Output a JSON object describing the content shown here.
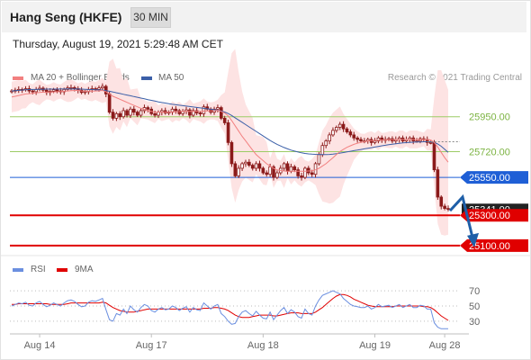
{
  "header": {
    "title": "Hang Seng (HKFE)",
    "timeframe": "30 MIN",
    "datetime": "Thursday, August 19, 2021 5:29:48 AM CET"
  },
  "legend": {
    "ma20_label": "MA 20 + Bollinger Bands",
    "ma50_label": "MA 50",
    "research": "Research © 2021 Trading Central",
    "rsi_label": "RSI",
    "ma9_label": "9MA"
  },
  "colors": {
    "ma20": "#f28080",
    "ma50": "#3b5fa8",
    "bollinger_fill": "#fde3e3",
    "candle": "#8b1a1a",
    "level_green": "#9ccc65",
    "level_blue": "#1f5fd6",
    "level_red": "#e00000",
    "rsi": "#6b8fe0",
    "rsi_ma": "#e00000",
    "arrow": "#1f5fa8"
  },
  "chart_data": [
    {
      "type": "candlestick",
      "title": "Hang Seng (HKFE)",
      "interval": "30 MIN",
      "ylim": [
        25040,
        26150
      ],
      "x_labels": [
        "Aug 14",
        "Aug 17",
        "Aug 18",
        "Aug 19",
        "Aug 28"
      ],
      "x_label_index": [
        8,
        40,
        72,
        104,
        124
      ],
      "levels": [
        {
          "value": 25950,
          "label": "25950.00",
          "kind": "resistance"
        },
        {
          "value": 25720,
          "label": "25720.00",
          "kind": "pivot"
        },
        {
          "value": 25550,
          "label": "25550.00",
          "kind": "current"
        },
        {
          "value": 25300,
          "label": "25300.00",
          "kind": "support"
        },
        {
          "value": 25100,
          "label": "25100.00",
          "kind": "support"
        }
      ],
      "last_price_tag": "25341.00",
      "candles_close": [
        26120,
        26125,
        26130,
        26128,
        26135,
        26120,
        26115,
        26130,
        26138,
        26125,
        26110,
        26118,
        26128,
        26120,
        26115,
        26130,
        26140,
        26142,
        26135,
        26125,
        26110,
        26115,
        26130,
        26135,
        26130,
        26140,
        26150,
        26100,
        25980,
        25940,
        25970,
        25950,
        25990,
        25960,
        26000,
        25980,
        25960,
        25990,
        26010,
        26000,
        25970,
        25960,
        25980,
        25990,
        25975,
        25980,
        26000,
        25990,
        25970,
        25985,
        25995,
        25960,
        25990,
        25975,
        25970,
        26015,
        26000,
        25980,
        26000,
        26010,
        25940,
        25910,
        25780,
        25640,
        25560,
        25610,
        25640,
        25650,
        25630,
        25610,
        25640,
        25610,
        25580,
        25570,
        25620,
        25550,
        25580,
        25610,
        25640,
        25590,
        25620,
        25600,
        25560,
        25550,
        25610,
        25580,
        25570,
        25640,
        25700,
        25760,
        25790,
        25830,
        25860,
        25880,
        25900,
        25870,
        25850,
        25830,
        25810,
        25800,
        25790,
        25790,
        25800,
        25780,
        25790,
        25810,
        25795,
        25800,
        25805,
        25790,
        25800,
        25810,
        25790,
        25800,
        25810,
        25790,
        25790,
        25805,
        25800,
        25780,
        25780,
        25600,
        25420,
        25360,
        25345,
        25341
      ],
      "ma20": [
        26080,
        26085,
        26090,
        26095,
        26100,
        26102,
        26105,
        26108,
        26110,
        26112,
        26112,
        26113,
        26114,
        26115,
        26116,
        26118,
        26120,
        26122,
        26123,
        26124,
        26120,
        26118,
        26118,
        26119,
        26120,
        26121,
        26123,
        26115,
        26100,
        26085,
        26075,
        26065,
        26055,
        26045,
        26035,
        26025,
        26015,
        26005,
        25998,
        25990,
        25985,
        25980,
        25980,
        25980,
        25980,
        25980,
        25982,
        25983,
        25984,
        25985,
        25986,
        25985,
        25986,
        25985,
        25985,
        25987,
        25988,
        25988,
        25990,
        25992,
        25985,
        25975,
        25955,
        25925,
        25890,
        25855,
        25820,
        25790,
        25760,
        25730,
        25700,
        25680,
        25660,
        25640,
        25625,
        25610,
        25600,
        25595,
        25592,
        25590,
        25590,
        25590,
        25590,
        25590,
        25590,
        25592,
        25593,
        25600,
        25610,
        25625,
        25640,
        25660,
        25680,
        25700,
        25720,
        25735,
        25748,
        25758,
        25768,
        25775,
        25780,
        25785,
        25790,
        25792,
        25793,
        25795,
        25796,
        25797,
        25798,
        25798,
        25799,
        25800,
        25800,
        25800,
        25800,
        25800,
        25800,
        25800,
        25800,
        25799,
        25797,
        25780,
        25750,
        25715,
        25680,
        25650
      ],
      "ma50": [
        26120,
        26122,
        26124,
        26126,
        26128,
        26129,
        26130,
        26130,
        26131,
        26131,
        26132,
        26132,
        26132,
        26132,
        26133,
        26133,
        26133,
        26133,
        26133,
        26133,
        26132,
        26131,
        26130,
        26129,
        26128,
        26127,
        26126,
        26122,
        26118,
        26113,
        26108,
        26103,
        26098,
        26093,
        26088,
        26083,
        26078,
        26073,
        26068,
        26063,
        26058,
        26053,
        26048,
        26044,
        26040,
        26036,
        26032,
        26029,
        26026,
        26023,
        26020,
        26017,
        26014,
        26011,
        26008,
        26005,
        26002,
        25999,
        25996,
        25993,
        25988,
        25981,
        25971,
        25958,
        25943,
        25928,
        25913,
        25898,
        25883,
        25868,
        25853,
        25838,
        25823,
        25808,
        25793,
        25780,
        25768,
        25757,
        25747,
        25738,
        25730,
        25723,
        25717,
        25712,
        25708,
        25705,
        25703,
        25702,
        25701,
        25700,
        25700,
        25701,
        25703,
        25706,
        25710,
        25714,
        25718,
        25722,
        25726,
        25730,
        25734,
        25738,
        25742,
        25746,
        25750,
        25754,
        25758,
        25762,
        25766,
        25769,
        25772,
        25775,
        25777,
        25779,
        25781,
        25782,
        25783,
        25784,
        25785,
        25785,
        25785,
        25780,
        25770,
        25755,
        25735,
        25715
      ]
    },
    {
      "type": "line",
      "title": "RSI",
      "ylim": [
        18,
        82
      ],
      "y_ticks": [
        70,
        50,
        30
      ],
      "series": [
        {
          "name": "RSI",
          "values": [
            50,
            52,
            54,
            53,
            55,
            51,
            50,
            54,
            56,
            52,
            49,
            51,
            54,
            52,
            50,
            54,
            57,
            58,
            56,
            52,
            49,
            50,
            55,
            57,
            56,
            58,
            60,
            45,
            32,
            30,
            40,
            38,
            46,
            40,
            50,
            45,
            42,
            48,
            52,
            50,
            44,
            42,
            46,
            48,
            45,
            46,
            50,
            48,
            44,
            47,
            49,
            42,
            48,
            45,
            44,
            54,
            50,
            46,
            50,
            52,
            40,
            36,
            30,
            26,
            27,
            36,
            42,
            44,
            40,
            37,
            43,
            38,
            34,
            33,
            42,
            32,
            38,
            44,
            48,
            40,
            45,
            42,
            36,
            34,
            46,
            40,
            38,
            50,
            58,
            64,
            66,
            68,
            70,
            68,
            66,
            60,
            56,
            52,
            50,
            49,
            48,
            48,
            50,
            46,
            48,
            52,
            49,
            50,
            51,
            48,
            50,
            52,
            48,
            50,
            52,
            48,
            48,
            51,
            50,
            46,
            46,
            28,
            22,
            20,
            20,
            20
          ]
        },
        {
          "name": "9MA",
          "values": [
            52,
            52,
            53,
            53,
            53,
            53,
            53,
            53,
            53,
            53,
            53,
            52,
            52,
            52,
            52,
            52,
            53,
            54,
            54,
            54,
            54,
            54,
            54,
            54,
            54,
            54,
            55,
            54,
            51,
            48,
            46,
            44,
            43,
            42,
            42,
            42,
            43,
            44,
            45,
            46,
            46,
            46,
            46,
            46,
            46,
            46,
            46,
            46,
            46,
            46,
            46,
            46,
            46,
            46,
            46,
            47,
            47,
            47,
            48,
            48,
            47,
            46,
            44,
            41,
            38,
            36,
            35,
            35,
            35,
            36,
            37,
            38,
            38,
            38,
            38,
            37,
            37,
            38,
            39,
            40,
            41,
            41,
            41,
            40,
            40,
            40,
            40,
            42,
            45,
            48,
            52,
            56,
            60,
            63,
            65,
            65,
            64,
            62,
            59,
            57,
            55,
            53,
            51,
            50,
            49,
            49,
            49,
            49,
            49,
            49,
            50,
            50,
            50,
            50,
            50,
            50,
            50,
            50,
            49,
            49,
            48,
            45,
            41,
            37,
            34,
            31
          ]
        }
      ]
    }
  ]
}
